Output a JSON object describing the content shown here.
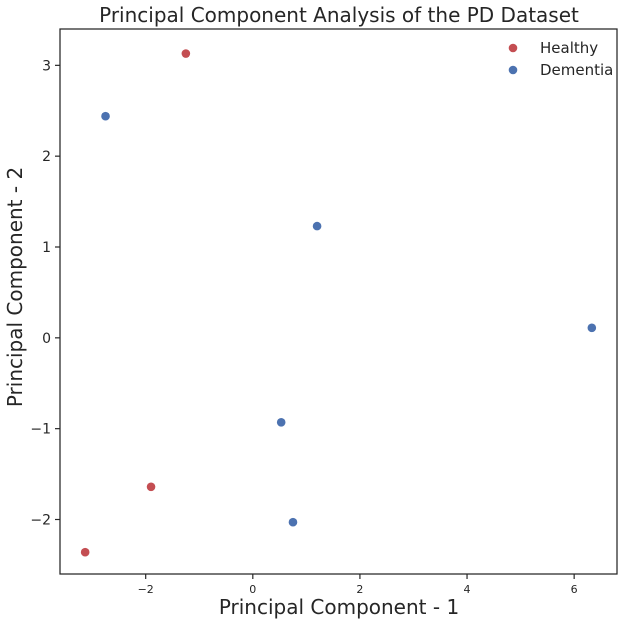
{
  "chart_data": {
    "type": "scatter",
    "title": "Principal Component Analysis of the PD Dataset",
    "xlabel": "Principal Component - 1",
    "ylabel": "Principal Component - 2",
    "xlim": [
      -3.6,
      6.8
    ],
    "ylim": [
      -2.6,
      3.4
    ],
    "xticks": [
      {
        "value": -2,
        "label": "−2"
      },
      {
        "value": 0,
        "label": "0"
      },
      {
        "value": 2,
        "label": "2"
      },
      {
        "value": 4,
        "label": "4"
      },
      {
        "value": 6,
        "label": "6"
      }
    ],
    "yticks": [
      {
        "value": -2,
        "label": "−2"
      },
      {
        "value": -1,
        "label": "−1"
      },
      {
        "value": 0,
        "label": "0"
      },
      {
        "value": 1,
        "label": "1"
      },
      {
        "value": 2,
        "label": "2"
      },
      {
        "value": 3,
        "label": "3"
      }
    ],
    "grid": false,
    "legend_position": "top-right",
    "series": [
      {
        "name": "Healthy",
        "color": "#c44e52",
        "points": [
          {
            "x": -1.25,
            "y": 3.13
          },
          {
            "x": -1.9,
            "y": -1.64
          },
          {
            "x": -3.13,
            "y": -2.36
          }
        ]
      },
      {
        "name": "Dementia",
        "color": "#4c72b0",
        "points": [
          {
            "x": -2.75,
            "y": 2.44
          },
          {
            "x": 1.2,
            "y": 1.23
          },
          {
            "x": 6.33,
            "y": 0.11
          },
          {
            "x": 0.53,
            "y": -0.93
          },
          {
            "x": 0.75,
            "y": -2.03
          }
        ]
      }
    ]
  }
}
